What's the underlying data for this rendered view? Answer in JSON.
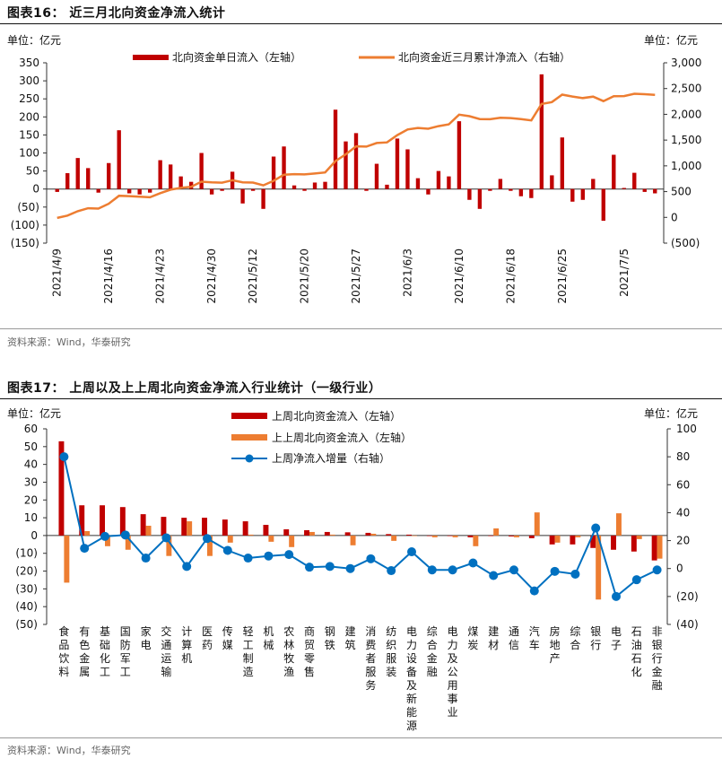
{
  "chart_data": [
    {
      "type": "bar+line",
      "title": "图表16：  近三月北向资金净流入统计",
      "left_unit": "单位：亿元",
      "right_unit": "单位：亿元",
      "y_left": {
        "min": -150,
        "max": 350,
        "step": 50,
        "labels": [
          "350",
          "300",
          "250",
          "200",
          "150",
          "100",
          "50",
          "0",
          "(50)",
          "(100)",
          "(150)"
        ]
      },
      "y_right": {
        "min": -500,
        "max": 3000,
        "step": 500,
        "labels": [
          "3,000",
          "2,500",
          "2,000",
          "1,500",
          "1,000",
          "500",
          "0",
          "(500)"
        ]
      },
      "x_tick_labels": [
        "2021/4/9",
        "2021/4/16",
        "2021/4/23",
        "2021/4/30",
        "2021/5/12",
        "2021/5/20",
        "2021/5/27",
        "2021/6/3",
        "2021/6/10",
        "2021/6/18",
        "2021/6/25",
        "2021/7/5"
      ],
      "x_tick_positions": [
        0,
        5,
        10,
        15,
        19,
        24,
        29,
        34,
        39,
        44,
        49,
        55
      ],
      "series": [
        {
          "name": "北向资金单日流入（左轴）",
          "axis": "left",
          "color": "#c00000",
          "values": [
            -8,
            44,
            86,
            58,
            -10,
            72,
            163,
            -12,
            -15,
            -10,
            80,
            68,
            35,
            20,
            100,
            -15,
            -5,
            48,
            -40,
            -5,
            -55,
            90,
            118,
            10,
            -5,
            18,
            20,
            220,
            132,
            155,
            -5,
            70,
            12,
            140,
            110,
            30,
            -15,
            50,
            35,
            188,
            -30,
            -55,
            -5,
            28,
            -5,
            -20,
            -25,
            318,
            38,
            143,
            -35,
            -30,
            28,
            -88,
            95,
            3,
            45,
            -8,
            -12
          ]
        },
        {
          "name": "北向资金近三月累计净流入（右轴）",
          "axis": "right",
          "color": "#ed7d31",
          "values": [
            -10,
            35,
            120,
            178,
            170,
            265,
            420,
            412,
            400,
            390,
            470,
            538,
            573,
            593,
            693,
            678,
            673,
            721,
            681,
            676,
            621,
            711,
            829,
            839,
            834,
            852,
            872,
            1092,
            1224,
            1379,
            1374,
            1444,
            1456,
            1596,
            1706,
            1736,
            1721,
            1771,
            1806,
            1994,
            1964,
            1909,
            1904,
            1932,
            1927,
            1907,
            1882,
            2200,
            2238,
            2381,
            2346,
            2316,
            2344,
            2256,
            2351,
            2354,
            2399,
            2391,
            2379
          ]
        }
      ]
    },
    {
      "type": "bar+line",
      "title": "图表17：  上周以及上上周北向资金净流入行业统计（一级行业）",
      "left_unit": "单位：亿元",
      "right_unit": "单位：亿元",
      "y_left": {
        "min": -50,
        "max": 60,
        "step": 10,
        "labels": [
          "60",
          "50",
          "40",
          "30",
          "20",
          "10",
          "0",
          "(10)",
          "(20)",
          "(30)",
          "(40)",
          "(50)"
        ]
      },
      "y_right": {
        "min": -40,
        "max": 100,
        "step": 20,
        "labels": [
          "100",
          "80",
          "60",
          "40",
          "20",
          "0",
          "(20)",
          "(40)"
        ]
      },
      "categories": [
        "食品饮料",
        "有色金属",
        "基础化工",
        "国防军工",
        "家电",
        "交通运输",
        "计算机",
        "医药",
        "传媒",
        "轻工制造",
        "机械",
        "农林牧渔",
        "商贸零售",
        "钢铁",
        "建筑",
        "消费者服务",
        "纺织服装",
        "电力设备及新能源",
        "综合金融",
        "电力及公用事业",
        "煤炭",
        "建材",
        "通信",
        "汽车",
        "房地产",
        "综合",
        "银行",
        "电子",
        "石油石化",
        "非银行金融"
      ],
      "series": [
        {
          "name": "上周北向资金流入（左轴）",
          "axis": "left",
          "color": "#c00000",
          "values": [
            53,
            17,
            17,
            16,
            12,
            10.5,
            10,
            10,
            9,
            8,
            6,
            3.5,
            3,
            2,
            1.8,
            1.5,
            0.8,
            0.5,
            0,
            0,
            -1,
            0,
            -0.5,
            -1.5,
            -5,
            -5,
            -7,
            -8,
            -9,
            -14
          ]
        },
        {
          "name": "上上周北向资金流入（左轴）",
          "axis": "left",
          "color": "#ed7d31",
          "values": [
            -26.5,
            2.5,
            -6,
            -8,
            5.5,
            -11.5,
            8,
            -11.5,
            -4,
            0.5,
            -3.5,
            -6.5,
            2,
            0.5,
            -5.5,
            1,
            -3,
            0,
            -1,
            -1,
            -6,
            4,
            -1,
            13,
            -4,
            -1,
            -36,
            12.5,
            -2,
            -13
          ]
        },
        {
          "name": "上周净流入增量（右轴）",
          "axis": "right",
          "color": "#0070c0",
          "values": [
            80,
            14.5,
            23,
            24,
            7.5,
            22,
            1.5,
            21.5,
            13,
            7.5,
            9,
            10,
            1,
            1.5,
            0,
            7,
            -1.5,
            12,
            -1,
            -1,
            4,
            -5,
            -1,
            -16,
            -2,
            -4,
            29,
            -20,
            -8,
            -1
          ]
        }
      ]
    }
  ],
  "source_1": "资料来源：Wind，华泰研究",
  "source_2": "资料来源：Wind，华泰研究"
}
